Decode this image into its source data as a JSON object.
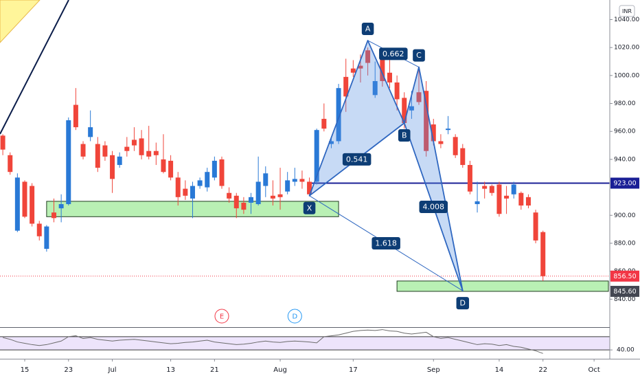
{
  "chart_data": {
    "type": "candlestick",
    "currency": "INR",
    "categories": [
      null,
      null,
      null,
      "15",
      null,
      null,
      null,
      null,
      null,
      "23",
      null,
      null,
      null,
      null,
      null,
      "Jul",
      null,
      null,
      null,
      null,
      null,
      null,
      null,
      "13",
      null,
      null,
      null,
      null,
      null,
      "21",
      null,
      null,
      null,
      null,
      null,
      null,
      null,
      null,
      "Aug",
      null,
      null,
      null,
      null,
      null,
      null,
      null,
      null,
      null,
      "17",
      null,
      null,
      null,
      null,
      null,
      null,
      null,
      null,
      null,
      null,
      "Sep",
      null,
      null,
      null,
      null,
      null,
      null,
      null,
      null,
      "14",
      null,
      null,
      null,
      null,
      null,
      "22",
      null,
      null,
      null,
      null,
      null,
      null,
      "Oct",
      null
    ],
    "open": [
      957,
      943,
      889,
      924,
      921,
      894,
      876,
      902,
      905,
      908,
      979,
      951,
      956,
      951,
      950,
      943,
      936,
      949,
      954,
      955,
      946,
      946,
      940,
      939,
      927,
      919,
      912,
      921,
      920,
      927,
      940,
      916,
      914,
      909,
      909,
      908,
      921,
      914,
      915,
      917,
      924,
      926,
      924,
      924,
      969,
      951,
      953,
      999,
      1005,
      1007,
      1018,
      986,
      1012,
      1002,
      995,
      984,
      975,
      988,
      989,
      965,
      953,
      961,
      956,
      948,
      936,
      908,
      921,
      921,
      922,
      914,
      915,
      916,
      913,
      902,
      888,
      null,
      null,
      null,
      null,
      null,
      null,
      null,
      null
    ],
    "high": [
      958,
      945,
      930,
      925,
      923,
      896,
      893,
      912,
      915,
      970,
      991,
      953,
      975,
      956,
      953,
      946,
      945,
      956,
      963,
      961,
      964,
      952,
      958,
      943,
      931,
      925,
      924,
      927,
      934,
      942,
      942,
      920,
      916,
      913,
      916,
      942,
      935,
      925,
      934,
      931,
      934,
      932,
      927,
      962,
      980,
      956,
      994,
      1012,
      1011,
      1015,
      1020,
      1010,
      1015,
      1012,
      1000,
      988,
      989,
      1005,
      996,
      969,
      958,
      971,
      958,
      951,
      939,
      924,
      924,
      922,
      924,
      921,
      924,
      917,
      915,
      904,
      889,
      null,
      null,
      null,
      null,
      null,
      null,
      null,
      null
    ],
    "low": [
      943,
      929,
      888,
      898,
      892,
      882,
      874,
      895,
      895,
      907,
      961,
      940,
      953,
      931,
      939,
      916,
      934,
      942,
      946,
      940,
      940,
      936,
      930,
      925,
      907,
      911,
      898,
      919,
      917,
      925,
      919,
      909,
      898,
      901,
      901,
      907,
      913,
      907,
      904,
      915,
      921,
      919,
      914,
      922,
      960,
      948,
      951,
      974,
      999,
      995,
      1000,
      984,
      992,
      991,
      975,
      962,
      969,
      979,
      942,
      950,
      948,
      958,
      941,
      934,
      915,
      902,
      912,
      914,
      899,
      901,
      912,
      904,
      905,
      880,
      853,
      null,
      null,
      null,
      null,
      null,
      null,
      null,
      null
    ],
    "close": [
      947,
      931,
      927,
      899,
      894,
      885,
      892,
      898,
      908,
      968,
      963,
      942,
      963,
      934,
      942,
      926,
      942,
      946,
      950,
      943,
      942,
      943,
      931,
      927,
      913,
      914,
      921,
      925,
      931,
      939,
      921,
      912,
      905,
      904,
      913,
      924,
      930,
      912,
      913,
      925,
      926,
      924,
      915,
      961,
      962,
      953,
      991,
      985,
      1002,
      1005,
      1009,
      996,
      996,
      995,
      983,
      966,
      978,
      981,
      946,
      953,
      951,
      962,
      943,
      936,
      917,
      910,
      919,
      916,
      901,
      912,
      922,
      907,
      907,
      882,
      856.5,
      null,
      null,
      null,
      null,
      null,
      null,
      null,
      null
    ],
    "up_color": "#2979d6",
    "down_color": "#f0453a",
    "ylim": [
      820,
      1054
    ],
    "yticks": [
      {
        "value": 1040,
        "label": "1040.00"
      },
      {
        "value": 1020,
        "label": "1020.00"
      },
      {
        "value": 1000,
        "label": "1000.00"
      },
      {
        "value": 980,
        "label": "980.00"
      },
      {
        "value": 960,
        "label": "960.00"
      },
      {
        "value": 940,
        "label": "940.00"
      },
      {
        "value": 900,
        "label": "900.00"
      },
      {
        "value": 880,
        "label": "880.00"
      },
      {
        "value": 860,
        "label": "860.00"
      },
      {
        "value": 840,
        "label": "840.00"
      }
    ],
    "levels": [
      {
        "value": 923,
        "label": "923.00",
        "color": "#1a1f96",
        "start": 42,
        "style": "solid"
      },
      {
        "value": 856.5,
        "label": "856.50",
        "color": "#f23645",
        "style": "dotted"
      }
    ],
    "zones": [
      {
        "x": [
          6,
          46
        ],
        "y": [
          899,
          910
        ],
        "color": "#b9f0b4"
      },
      {
        "x": [
          54,
          83
        ],
        "y": [
          845.6,
          853
        ],
        "color": "#b9f0b4",
        "label": "845.60",
        "label_color": "#434651"
      }
    ],
    "pattern": {
      "color": "#2f67c0",
      "fill": "rgba(80,140,225,0.32)",
      "label_color": "#0d3d75",
      "points": [
        {
          "label": "X",
          "x": 42,
          "price": 914
        },
        {
          "label": "A",
          "x": 50,
          "price": 1025
        },
        {
          "label": "B",
          "x": 55,
          "price": 966
        },
        {
          "label": "C",
          "x": 57,
          "price": 1006
        },
        {
          "label": "D",
          "x": 63,
          "price": 846
        }
      ],
      "ratios": [
        {
          "value": 0.662,
          "points": [
            1,
            3
          ]
        },
        {
          "value": 0.541,
          "points": [
            0,
            2
          ]
        },
        {
          "value": 4.008,
          "points": [
            2,
            4
          ]
        },
        {
          "value": 1.618,
          "points": [
            0,
            4
          ]
        }
      ]
    },
    "events": [
      {
        "label": "E",
        "x": 30,
        "color": "#f23645"
      },
      {
        "label": "D",
        "x": 40,
        "color": "#2196f3"
      }
    ],
    "rsi": {
      "values": [
        68,
        64,
        58,
        55,
        52,
        50,
        52,
        56,
        60,
        70,
        72,
        66,
        68,
        64,
        62,
        60,
        62,
        63,
        64,
        62,
        60,
        58,
        56,
        54,
        55,
        57,
        58,
        60,
        62,
        58,
        56,
        54,
        52,
        53,
        55,
        58,
        60,
        58,
        57,
        59,
        60,
        59,
        58,
        56,
        70,
        72,
        74,
        78,
        82,
        84,
        85,
        84,
        86,
        83,
        82,
        78,
        76,
        78,
        80,
        70,
        66,
        68,
        64,
        60,
        56,
        52,
        54,
        53,
        50,
        52,
        48,
        46,
        42,
        38,
        32,
        null,
        null,
        null,
        null,
        null,
        null,
        null,
        null
      ],
      "ylim": [
        20,
        90
      ],
      "yticks": [
        {
          "value": 40,
          "label": "40.00"
        }
      ],
      "band": [
        40,
        70
      ],
      "color": "#6b6b6b",
      "band_color": "#ede4fb"
    }
  }
}
